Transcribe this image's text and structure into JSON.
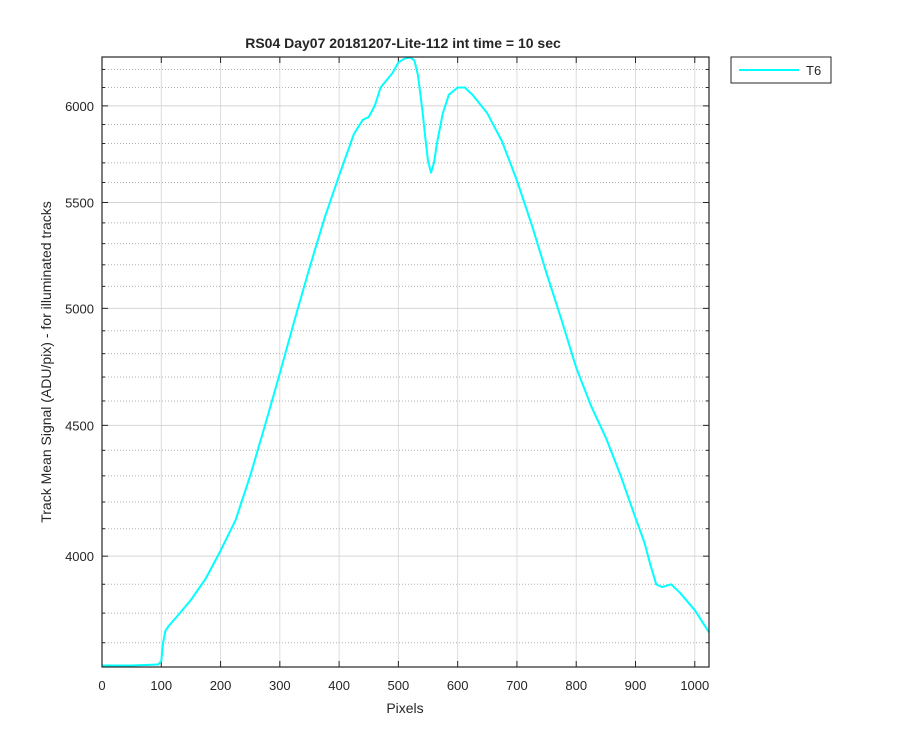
{
  "chart_data": {
    "type": "line",
    "title": "RS04 Day07 20181207-Lite-112 int time = 10 sec",
    "xlabel": "Pixels",
    "ylabel": "Track Mean Signal (ADU/pix) - for illuminated tracks",
    "xlim": [
      0,
      1024
    ],
    "ylim": [
      3620,
      6270
    ],
    "y_scale": "log",
    "x_ticks": [
      0,
      100,
      200,
      300,
      400,
      500,
      600,
      700,
      800,
      900,
      1000
    ],
    "x_tick_labels": [
      "0",
      "100",
      "200",
      "300",
      "400",
      "500",
      "600",
      "700",
      "800",
      "900",
      "1000"
    ],
    "y_ticks": [
      4000,
      4500,
      5000,
      5500,
      6000
    ],
    "y_tick_labels": [
      "4000",
      "4500",
      "5000",
      "5500",
      "6000"
    ],
    "y_minor_ticks": [
      3700,
      3800,
      3900,
      4100,
      4200,
      4300,
      4400,
      4600,
      4700,
      4800,
      4900,
      5100,
      5200,
      5300,
      5400,
      5600,
      5700,
      5800,
      5900,
      6100,
      6200
    ],
    "grid": true,
    "legend_position": "outside-top-right",
    "series": [
      {
        "name": "T6",
        "color": "#00ffff",
        "x": [
          0,
          50,
          95,
          100,
          103,
          107,
          112,
          125,
          150,
          175,
          200,
          225,
          250,
          275,
          300,
          325,
          350,
          375,
          400,
          425,
          440,
          450,
          460,
          470,
          480,
          490,
          500,
          510,
          520,
          527,
          533,
          540,
          545,
          550,
          555,
          560,
          565,
          575,
          585,
          600,
          612,
          625,
          650,
          675,
          700,
          725,
          750,
          775,
          800,
          825,
          850,
          875,
          900,
          915,
          925,
          935,
          945,
          960,
          975,
          1000,
          1024
        ],
        "y": [
          3625,
          3625,
          3628,
          3640,
          3700,
          3740,
          3755,
          3785,
          3845,
          3920,
          4020,
          4130,
          4300,
          4500,
          4715,
          4950,
          5185,
          5420,
          5635,
          5850,
          5925,
          5940,
          6000,
          6100,
          6140,
          6180,
          6240,
          6260,
          6268,
          6250,
          6170,
          5990,
          5840,
          5710,
          5650,
          5700,
          5800,
          5960,
          6060,
          6100,
          6100,
          6060,
          5960,
          5810,
          5610,
          5390,
          5160,
          4950,
          4740,
          4580,
          4450,
          4300,
          4140,
          4050,
          3970,
          3900,
          3890,
          3900,
          3870,
          3810,
          3735
        ]
      }
    ]
  }
}
